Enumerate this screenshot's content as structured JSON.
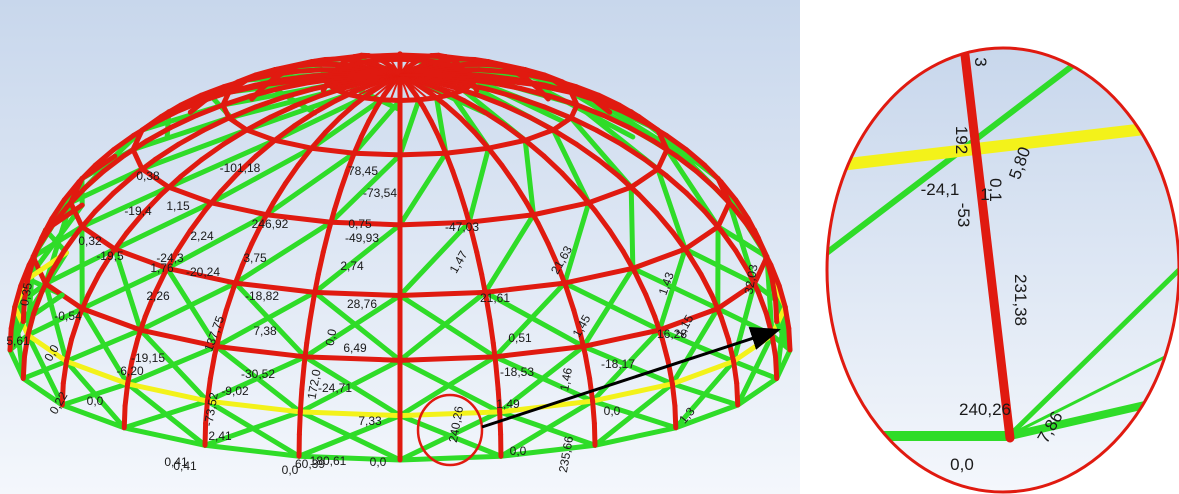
{
  "colors": {
    "compression": "#e01a10",
    "tension": "#2fdc28",
    "ring": "#f3f21a",
    "callout": "#e01a10",
    "arrow": "#000000",
    "sky_top": "#c8d7ec",
    "sky_bottom": "#f4f7fc"
  },
  "dome_labels": [
    "5,61",
    "0,0",
    "-0,54",
    "0,35",
    "0,0",
    "0,22",
    "0,32",
    "0,41",
    "-6,20",
    "-19,15",
    "2,26",
    "1,76",
    "-9,02",
    "-30,52",
    "-24,71",
    "-18,53",
    "-18,17",
    "16,28",
    "1,43",
    "0,0",
    "1,3",
    "1,15",
    "2,41",
    "0,41",
    "0,0",
    "7,33",
    "1,49",
    "0,0",
    "7,38",
    "6,49",
    "0,51",
    "21,61",
    "28,76",
    "-18,82",
    "3,75",
    "2,74",
    "1,47",
    "21,63",
    "1,45",
    "-20,24",
    "2,24",
    "0,75",
    "-49,93",
    "-47,03",
    "137,75",
    "-24,3",
    "246,92",
    "78,45",
    "-73,54",
    "-101,18",
    "-19,4",
    "0,38",
    "1,15",
    "-19,5",
    "32,03",
    "0,0",
    "172,0",
    "180,61",
    "235,66",
    "240,26",
    "-73,52",
    "0,0",
    "60,39",
    "1,46"
  ],
  "zoom_labels": [
    "3",
    "192",
    "0,1",
    "5,80",
    "-24,1",
    "-53",
    "1",
    "231,38",
    "240,26",
    "7,86",
    "0,0"
  ]
}
